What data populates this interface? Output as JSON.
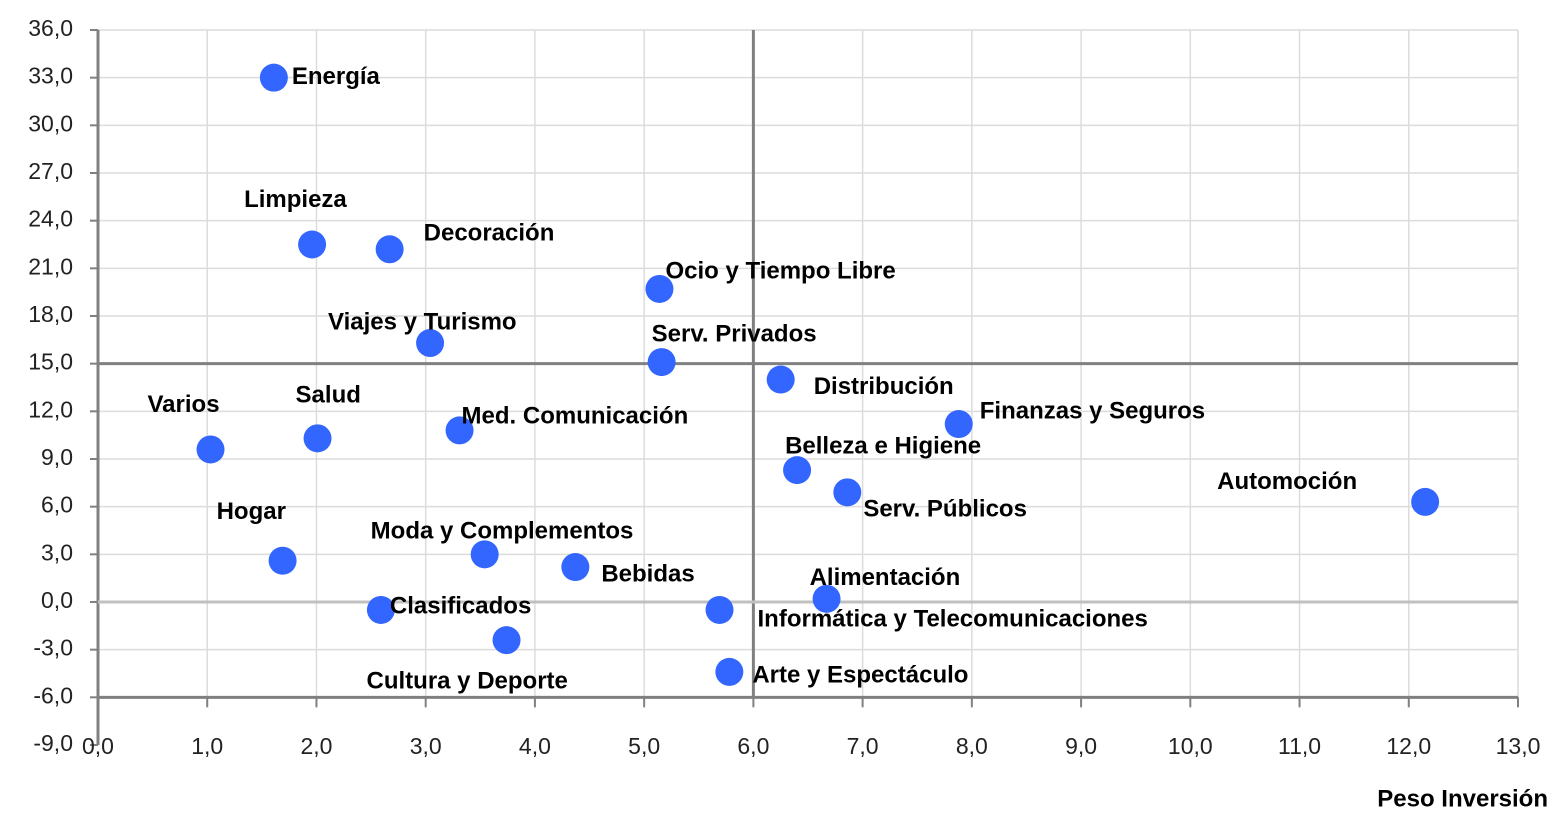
{
  "chart_data": {
    "type": "scatter",
    "x_label": "Peso Inversión",
    "color": "#3366ff",
    "xlim": [
      0,
      13
    ],
    "ylim": [
      -9,
      36
    ],
    "xaxis_crossing": -6,
    "grid": true,
    "reference_lines": {
      "x": [
        6
      ],
      "y": [
        15,
        0
      ],
      "colors": [
        "#808080",
        "#808080",
        "#c0c0c0"
      ]
    },
    "xticks": [
      {
        "value": 0,
        "label": "0,0"
      },
      {
        "value": 1,
        "label": "1,0"
      },
      {
        "value": 2,
        "label": "2,0"
      },
      {
        "value": 3,
        "label": "3,0"
      },
      {
        "value": 4,
        "label": "4,0"
      },
      {
        "value": 5,
        "label": "5,0"
      },
      {
        "value": 6,
        "label": "6,0"
      },
      {
        "value": 7,
        "label": "7,0"
      },
      {
        "value": 8,
        "label": "8,0"
      },
      {
        "value": 9,
        "label": "9,0"
      },
      {
        "value": 10,
        "label": "10,0"
      },
      {
        "value": 11,
        "label": "11,0"
      },
      {
        "value": 12,
        "label": "12,0"
      },
      {
        "value": 13,
        "label": "13,0"
      }
    ],
    "yticks": [
      {
        "value": -9,
        "label": "-9,0"
      },
      {
        "value": -6,
        "label": "-6,0"
      },
      {
        "value": -3,
        "label": "-3,0"
      },
      {
        "value": 0,
        "label": "0,0"
      },
      {
        "value": 3,
        "label": "3,0"
      },
      {
        "value": 6,
        "label": "6,0"
      },
      {
        "value": 9,
        "label": "9,0"
      },
      {
        "value": 12,
        "label": "12,0"
      },
      {
        "value": 15,
        "label": "15,0"
      },
      {
        "value": 18,
        "label": "18,0"
      },
      {
        "value": 21,
        "label": "21,0"
      },
      {
        "value": 24,
        "label": "24,0"
      },
      {
        "value": 27,
        "label": "27,0"
      },
      {
        "value": 30,
        "label": "30,0"
      },
      {
        "value": 33,
        "label": "33,0"
      },
      {
        "value": 36,
        "label": "36,0"
      }
    ],
    "labels": [
      "Energía",
      "Limpieza",
      "Decoración",
      "Ocio y Tiempo Libre",
      "Viajes y Turismo",
      "Serv. Privados",
      "Distribución",
      "Varios",
      "Salud",
      "Med. Comunicación",
      "Finanzas y Seguros",
      "Belleza e Higiene",
      "Serv. Públicos",
      "Automoción",
      "Hogar",
      "Moda y Complementos",
      "Bebidas",
      "Alimentación",
      "Clasificados",
      "Informática y Telecomunicaciones",
      "Cultura y Deporte",
      "Arte y Espectáculo"
    ],
    "x": [
      1.61,
      1.96,
      2.67,
      5.14,
      3.04,
      5.16,
      6.25,
      1.03,
      2.01,
      3.31,
      7.88,
      6.4,
      6.86,
      12.15,
      1.69,
      3.54,
      4.37,
      6.67,
      2.59,
      5.69,
      3.74,
      5.78
    ],
    "y": [
      33.0,
      22.5,
      22.2,
      19.7,
      16.3,
      15.1,
      14.0,
      9.6,
      10.3,
      10.8,
      11.2,
      8.3,
      6.9,
      6.3,
      2.6,
      3.0,
      2.2,
      0.2,
      -0.5,
      -0.5,
      -2.4,
      -4.4
    ]
  }
}
